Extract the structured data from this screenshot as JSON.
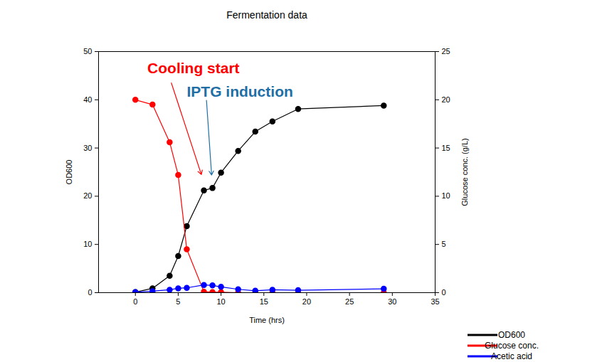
{
  "chart_data": {
    "type": "line",
    "title": "Fermentation data",
    "x_label": "Time (hrs)",
    "y_label": "OD600",
    "y2_label": "Glucose conc. (g/L)",
    "xlim": [
      -4.3,
      35
    ],
    "xticks": [
      0,
      5,
      10,
      15,
      20,
      25,
      30,
      35
    ],
    "ylim": [
      0,
      50
    ],
    "yticks": [
      0,
      10,
      20,
      30,
      40,
      50
    ],
    "y2lim": [
      0,
      25
    ],
    "y2ticks": [
      0,
      5,
      10,
      15,
      20,
      25
    ],
    "grid": false,
    "legend": "bottom right",
    "marker": "circle",
    "x": [
      0,
      2,
      4,
      5,
      6,
      8,
      9,
      10,
      12,
      14,
      16,
      19,
      29
    ],
    "series": [
      {
        "name": "OD600",
        "color": "#000000",
        "values": [
          0.1,
          0.9,
          3.5,
          7.6,
          13.8,
          21.2,
          21.7,
          24.9,
          29.4,
          33.4,
          35.5,
          38.1,
          38.8
        ]
      },
      {
        "name": "Glucose conc.",
        "color": "#ff0000",
        "axis": "y2",
        "values": [
          20,
          19.5,
          15.6,
          12.2,
          4.5,
          0.1,
          0.05,
          0.05,
          0,
          0,
          0,
          0,
          0
        ]
      },
      {
        "name": "Acetic acid",
        "color": "#0000ff",
        "axis": "y2",
        "values": [
          0.05,
          0.15,
          0.3,
          0.45,
          0.5,
          0.8,
          0.75,
          0.6,
          0.35,
          0.2,
          0.3,
          0.25,
          0.4
        ]
      }
    ],
    "annotations": [
      {
        "text": "Cooling start",
        "color": "#ff0000",
        "text_at": [
          1.4,
          46.5
        ],
        "arrow_from": [
          4.2,
          43.5
        ],
        "arrow_to": [
          7.7,
          24.5
        ]
      },
      {
        "text": "IPTG induction",
        "color": "#1f6fa6",
        "text_at": [
          6,
          41.6
        ],
        "arrow_from": [
          8.3,
          39.9
        ],
        "arrow_to": [
          8.9,
          24.4
        ]
      }
    ]
  }
}
